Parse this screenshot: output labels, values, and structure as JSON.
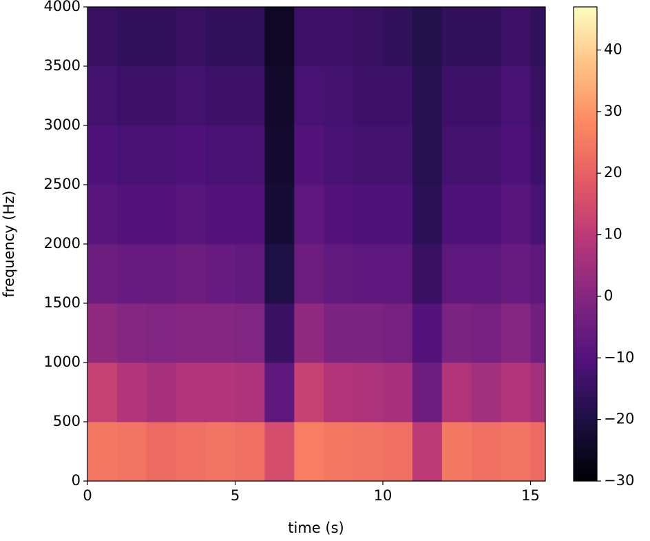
{
  "chart_data": {
    "type": "heatmap",
    "xlabel": "time (s)",
    "ylabel": "frequency (Hz)",
    "xlim": [
      0,
      15.5
    ],
    "xticks": [
      0,
      5,
      10,
      15
    ],
    "ylim": [
      0,
      4000
    ],
    "yticks": [
      0,
      500,
      1000,
      1500,
      2000,
      2500,
      3000,
      3500,
      4000
    ],
    "xbins": [
      0,
      1,
      2,
      3,
      4,
      5,
      6,
      7,
      8,
      9,
      10,
      11,
      12,
      13,
      14,
      15,
      15.5
    ],
    "ybins": [
      0,
      500,
      1000,
      1500,
      2000,
      2500,
      3000,
      3500,
      4000
    ],
    "z": [
      [
        25,
        24,
        22,
        23,
        24,
        23,
        15,
        26,
        25,
        24,
        23,
        10,
        25,
        23,
        24,
        22
      ],
      [
        12,
        8,
        6,
        8,
        8,
        7,
        -8,
        12,
        8,
        7,
        6,
        -5,
        8,
        5,
        8,
        5
      ],
      [
        2,
        0,
        -1,
        0,
        0,
        -1,
        -15,
        2,
        -2,
        -2,
        -3,
        -10,
        -2,
        -3,
        0,
        -4
      ],
      [
        -5,
        -6,
        -6,
        -5,
        -6,
        -7,
        -20,
        -5,
        -7,
        -8,
        -8,
        -15,
        -8,
        -8,
        -6,
        -8
      ],
      [
        -9,
        -10,
        -10,
        -9,
        -10,
        -10,
        -22,
        -8,
        -10,
        -11,
        -11,
        -17,
        -11,
        -11,
        -9,
        -12
      ],
      [
        -11,
        -12,
        -12,
        -11,
        -12,
        -12,
        -23,
        -10,
        -12,
        -13,
        -13,
        -18,
        -13,
        -13,
        -11,
        -14
      ],
      [
        -13,
        -14,
        -14,
        -13,
        -14,
        -14,
        -24,
        -12,
        -13,
        -14,
        -14,
        -18,
        -14,
        -14,
        -12,
        -15
      ],
      [
        -15,
        -16,
        -16,
        -15,
        -16,
        -16,
        -25,
        -14,
        -14,
        -15,
        -16,
        -19,
        -16,
        -16,
        -14,
        -16
      ]
    ],
    "colormap": "magma",
    "clim": [
      -30,
      47
    ],
    "cticks": [
      {
        "value": -30,
        "label": "−30"
      },
      {
        "value": -20,
        "label": "−20"
      },
      {
        "value": -10,
        "label": "−10"
      },
      0,
      10,
      20,
      30,
      40
    ]
  }
}
